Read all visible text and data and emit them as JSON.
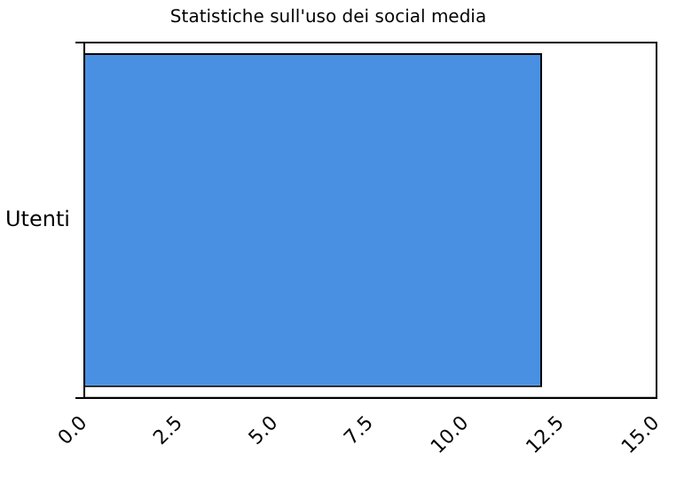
{
  "chart_data": {
    "type": "bar",
    "orientation": "horizontal",
    "title": "Statistiche sull'uso dei social media",
    "categories": [
      "Utenti"
    ],
    "values": [
      12
    ],
    "color": "#4a90e2",
    "xlim": [
      0,
      15
    ],
    "xticks": [
      {
        "value": 0,
        "label": "0.0"
      },
      {
        "value": 2.5,
        "label": "2.5"
      },
      {
        "value": 5,
        "label": "5.0"
      },
      {
        "value": 7.5,
        "label": "7.5"
      },
      {
        "value": 10,
        "label": "10.0"
      },
      {
        "value": 12.5,
        "label": "12.5"
      },
      {
        "value": 15,
        "label": "15.0"
      }
    ],
    "grid": false,
    "legend": false
  }
}
